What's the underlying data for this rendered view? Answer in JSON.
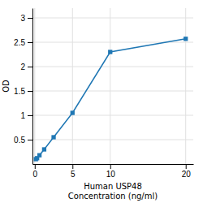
{
  "chart_data": {
    "type": "line",
    "x": [
      0.156,
      0.313,
      0.625,
      1.25,
      2.5,
      5,
      10,
      20
    ],
    "values": [
      0.1,
      0.12,
      0.18,
      0.3,
      0.55,
      1.05,
      2.3,
      2.57
    ],
    "xlabel": "Human USP48\nConcentration (ng/ml)",
    "ylabel": "OD",
    "xlim": [
      -0.3,
      21
    ],
    "ylim": [
      0,
      3.2
    ],
    "xticks": [
      0,
      5,
      10,
      20
    ],
    "yticks": [
      0.5,
      1,
      1.5,
      2,
      2.5,
      3
    ],
    "grid": true,
    "marker": "square"
  }
}
